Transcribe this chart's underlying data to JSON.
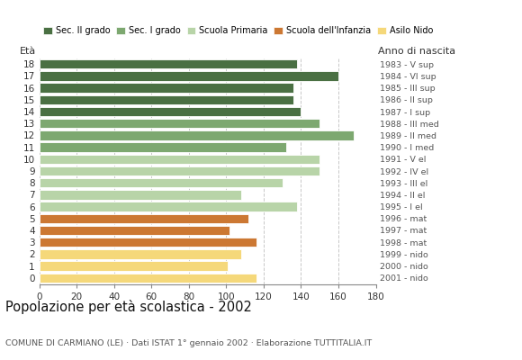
{
  "ages": [
    18,
    17,
    16,
    15,
    14,
    13,
    12,
    11,
    10,
    9,
    8,
    7,
    6,
    5,
    4,
    3,
    2,
    1,
    0
  ],
  "values": [
    138,
    160,
    136,
    136,
    140,
    150,
    168,
    132,
    150,
    150,
    130,
    108,
    138,
    112,
    102,
    116,
    108,
    101,
    116
  ],
  "colors": [
    "#4a7043",
    "#4a7043",
    "#4a7043",
    "#4a7043",
    "#4a7043",
    "#7da870",
    "#7da870",
    "#7da870",
    "#b8d4a8",
    "#b8d4a8",
    "#b8d4a8",
    "#b8d4a8",
    "#b8d4a8",
    "#cc7833",
    "#cc7833",
    "#cc7833",
    "#f5d87a",
    "#f5d87a",
    "#f5d87a"
  ],
  "right_labels": [
    "1983 - V sup",
    "1984 - VI sup",
    "1985 - III sup",
    "1986 - II sup",
    "1987 - I sup",
    "1988 - III med",
    "1989 - II med",
    "1990 - I med",
    "1991 - V el",
    "1992 - IV el",
    "1993 - III el",
    "1994 - II el",
    "1995 - I el",
    "1996 - mat",
    "1997 - mat",
    "1998 - mat",
    "1999 - nido",
    "2000 - nido",
    "2001 - nido"
  ],
  "legend_labels": [
    "Sec. II grado",
    "Sec. I grado",
    "Scuola Primaria",
    "Scuola dell'Infanzia",
    "Asilo Nido"
  ],
  "legend_colors": [
    "#4a7043",
    "#7da870",
    "#b8d4a8",
    "#cc7833",
    "#f5d87a"
  ],
  "title": "Popolazione per età scolastica - 2002",
  "subtitle": "COMUNE DI CARMIANO (LE) · Dati ISTAT 1° gennaio 2002 · Elaborazione TUTTITALIA.IT",
  "xlabel_eta": "Età",
  "xlabel_anno": "Anno di nascita",
  "xlim": [
    0,
    180
  ],
  "xticks": [
    0,
    20,
    40,
    60,
    80,
    100,
    120,
    140,
    160,
    180
  ],
  "background_color": "#ffffff",
  "grid_color": "#c8c8c8"
}
